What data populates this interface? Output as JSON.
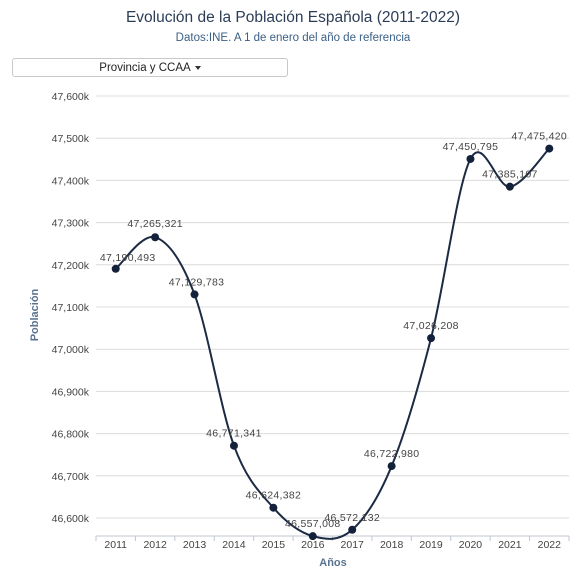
{
  "header": {
    "title": "Evolución de la Población Española (2011-2022)",
    "subtitle": "Datos:INE. A 1 de enero del año de referencia"
  },
  "filter": {
    "selected": "Provincia y CCAA"
  },
  "colors": {
    "line": "#1c2a44",
    "marker": "#14213a",
    "grid": "#dcdcdc",
    "title": "#2b3d56",
    "axis_title": "#5a7391"
  },
  "chart_data": {
    "type": "line",
    "title": "Evolución de la Población Española (2011-2022)",
    "subtitle": "Datos:INE. A 1 de enero del año de referencia",
    "xlabel": "Años",
    "ylabel": "Población",
    "categories": [
      "2011",
      "2012",
      "2013",
      "2014",
      "2015",
      "2016",
      "2017",
      "2018",
      "2019",
      "2020",
      "2021",
      "2022"
    ],
    "values": [
      47190493,
      47265321,
      47129783,
      46771341,
      46624382,
      46557008,
      46572132,
      46722980,
      47026208,
      47450795,
      47385107,
      47475420
    ],
    "data_labels": [
      "47,190,493",
      "47,265,321",
      "47,129,783",
      "46,771,341",
      "46,624,382",
      "46,557,008",
      "46,572,132",
      "46,722,980",
      "47,026,208",
      "47,450,795",
      "47,385,107",
      "47,475,420"
    ],
    "ylim": [
      46550000,
      47600000
    ],
    "yticks": [
      46600000,
      46700000,
      46800000,
      46900000,
      47000000,
      47100000,
      47200000,
      47300000,
      47400000,
      47500000,
      47600000
    ],
    "ytick_labels": [
      "46,600k",
      "46,700k",
      "46,800k",
      "46,900k",
      "47,000k",
      "47,100k",
      "47,200k",
      "47,300k",
      "47,400k",
      "47,500k",
      "47,600k"
    ],
    "grid": true,
    "smooth": true
  }
}
